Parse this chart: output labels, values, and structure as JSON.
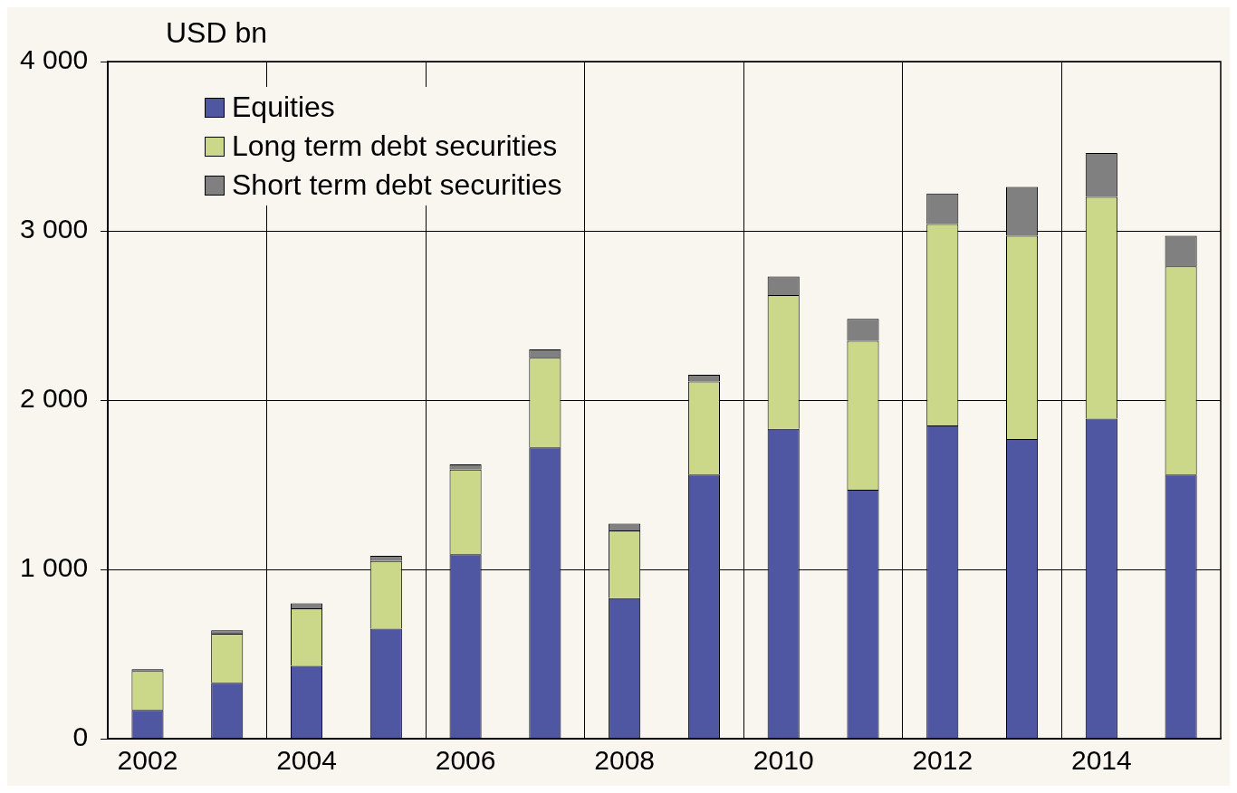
{
  "chart_data": {
    "type": "bar",
    "stacked": true,
    "ylabel": "USD bn",
    "categories": [
      "2002",
      null,
      "2004",
      null,
      "2006",
      null,
      "2008",
      null,
      "2010",
      null,
      "2012",
      null,
      "2014",
      null
    ],
    "series": [
      {
        "name": "Equities",
        "color": "#4f57a3",
        "values": [
          170,
          330,
          430,
          650,
          1090,
          1720,
          830,
          1560,
          1830,
          1470,
          1850,
          1770,
          1890,
          1560
        ]
      },
      {
        "name": "Long term debt securities",
        "color": "#cbd88a",
        "values": [
          230,
          290,
          340,
          400,
          500,
          530,
          400,
          550,
          790,
          880,
          1190,
          1200,
          1310,
          1230
        ]
      },
      {
        "name": "Short term debt securities",
        "color": "#808080",
        "values": [
          10,
          20,
          30,
          30,
          30,
          50,
          40,
          40,
          110,
          130,
          180,
          290,
          260,
          180
        ]
      }
    ],
    "ylim": [
      0,
      4000
    ],
    "yticks": [
      {
        "value": 0,
        "label": "0"
      },
      {
        "value": 1000,
        "label": "1 000"
      },
      {
        "value": 2000,
        "label": "2 000"
      },
      {
        "value": 3000,
        "label": "3 000"
      },
      {
        "value": 4000,
        "label": "4 000"
      }
    ],
    "grid": true,
    "legend": "top left"
  }
}
